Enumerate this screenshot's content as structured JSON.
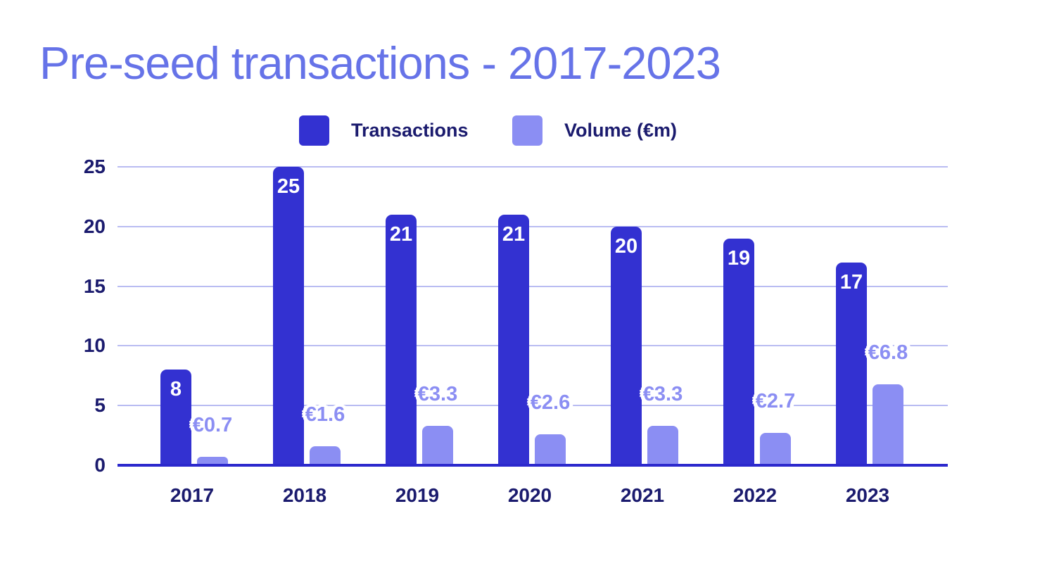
{
  "title": {
    "text": "Pre-seed transactions - 2017-2023",
    "color": "#6673e8"
  },
  "legend": {
    "position": "top",
    "items": [
      {
        "label": "Transactions",
        "color": "#3331d1"
      },
      {
        "label": "Volume (€m)",
        "color": "#8b8ef3"
      }
    ]
  },
  "chart_data": {
    "type": "bar",
    "title": "Pre-seed transactions - 2017-2023",
    "categories": [
      "2017",
      "2018",
      "2019",
      "2020",
      "2021",
      "2022",
      "2023"
    ],
    "series": [
      {
        "name": "Transactions",
        "color": "#3331d1",
        "values": [
          8,
          25,
          21,
          21,
          20,
          19,
          17
        ],
        "labels": [
          "8",
          "25",
          "21",
          "21",
          "20",
          "19",
          "17"
        ],
        "label_color": "#ffffff",
        "label_position": "inside-top"
      },
      {
        "name": "Volume (€m)",
        "color": "#8b8ef3",
        "values": [
          0.7,
          1.6,
          3.3,
          2.6,
          3.3,
          2.7,
          6.8
        ],
        "labels": [
          "€0.7",
          "€1.6",
          "€3.3",
          "€2.6",
          "€3.3",
          "€2.7",
          "€6.8"
        ],
        "label_color": "#8b8ef3",
        "label_position": "above-bar"
      }
    ],
    "xlabel": "",
    "ylabel": "",
    "y_ticks": [
      0,
      5,
      10,
      15,
      20,
      25
    ],
    "y_tick_labels": [
      "0",
      "5",
      "10",
      "15",
      "20",
      "25"
    ],
    "ylim": [
      0,
      25
    ],
    "grid": true,
    "legend_position": "top"
  },
  "colors": {
    "background": "#ffffff",
    "title_color": "#6673e8",
    "tick_text": "#1b1b6e",
    "gridline": "#b9bcf2",
    "axis_line": "#2c29cd",
    "transactions_bar": "#3331d1",
    "volume_bar": "#8b8ef3",
    "bar_label_white": "#ffffff",
    "volume_label": "#8b8ef3"
  }
}
